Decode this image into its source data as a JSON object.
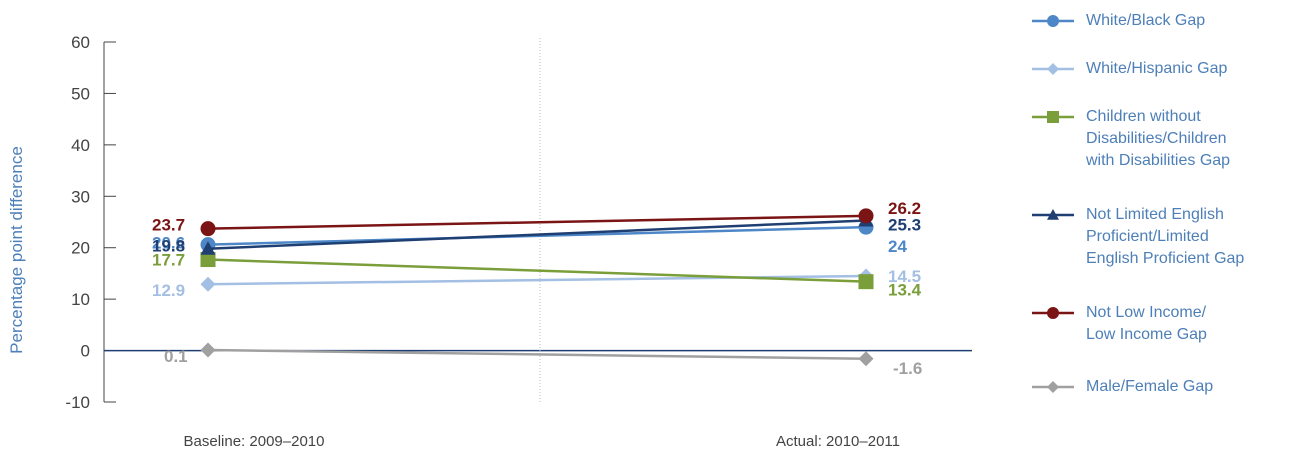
{
  "chart_data": {
    "type": "line",
    "title": "",
    "xlabel": "",
    "ylabel": "Percentage point difference",
    "ylim": [
      -10,
      60
    ],
    "yticks": [
      -10,
      0,
      10,
      20,
      30,
      40,
      50,
      60
    ],
    "categories": [
      "Baseline: 2009–2010",
      "Actual: 2010–2011"
    ],
    "grid": false,
    "legend_position": "right",
    "series": [
      {
        "name": "White/Black Gap",
        "values": [
          20.6,
          24
        ],
        "labels": [
          "20.6",
          "24"
        ],
        "color": "#4d87c7",
        "marker": "circle"
      },
      {
        "name": "White/Hispanic Gap",
        "values": [
          12.9,
          14.5
        ],
        "labels": [
          "12.9",
          "14.5"
        ],
        "color": "#a3bfe3",
        "marker": "diamond"
      },
      {
        "name": "Children without Disabilities/Children with Disabilities Gap",
        "values": [
          17.7,
          13.4
        ],
        "labels": [
          "17.7",
          "13.4"
        ],
        "color": "#7a9e3a",
        "marker": "square"
      },
      {
        "name": "Not Limited English Proficient/Limited English Proficient Gap",
        "values": [
          19.8,
          25.3
        ],
        "labels": [
          "19.8",
          "25.3"
        ],
        "color": "#1f3f73",
        "marker": "triangle"
      },
      {
        "name": "Not Low Income/ Low Income Gap",
        "values": [
          23.7,
          26.2
        ],
        "labels": [
          "23.7",
          "26.2"
        ],
        "color": "#7b1414",
        "marker": "circle"
      },
      {
        "name": "Male/Female Gap",
        "values": [
          0.1,
          -1.6
        ],
        "labels": [
          "0.1",
          "-1.6"
        ],
        "color": "#a0a0a0",
        "marker": "diamond"
      }
    ]
  },
  "legend": {
    "items": [
      {
        "lines": [
          "White/Black Gap"
        ]
      },
      {
        "lines": [
          "White/Hispanic Gap"
        ]
      },
      {
        "lines": [
          "Children without",
          "Disabilities/Children",
          "with Disabilities Gap"
        ]
      },
      {
        "lines": [
          "Not Limited English",
          "Proficient/Limited",
          "English Proficient Gap"
        ]
      },
      {
        "lines": [
          "Not Low Income/",
          "Low Income Gap"
        ]
      },
      {
        "lines": [
          "Male/Female Gap"
        ]
      }
    ]
  }
}
